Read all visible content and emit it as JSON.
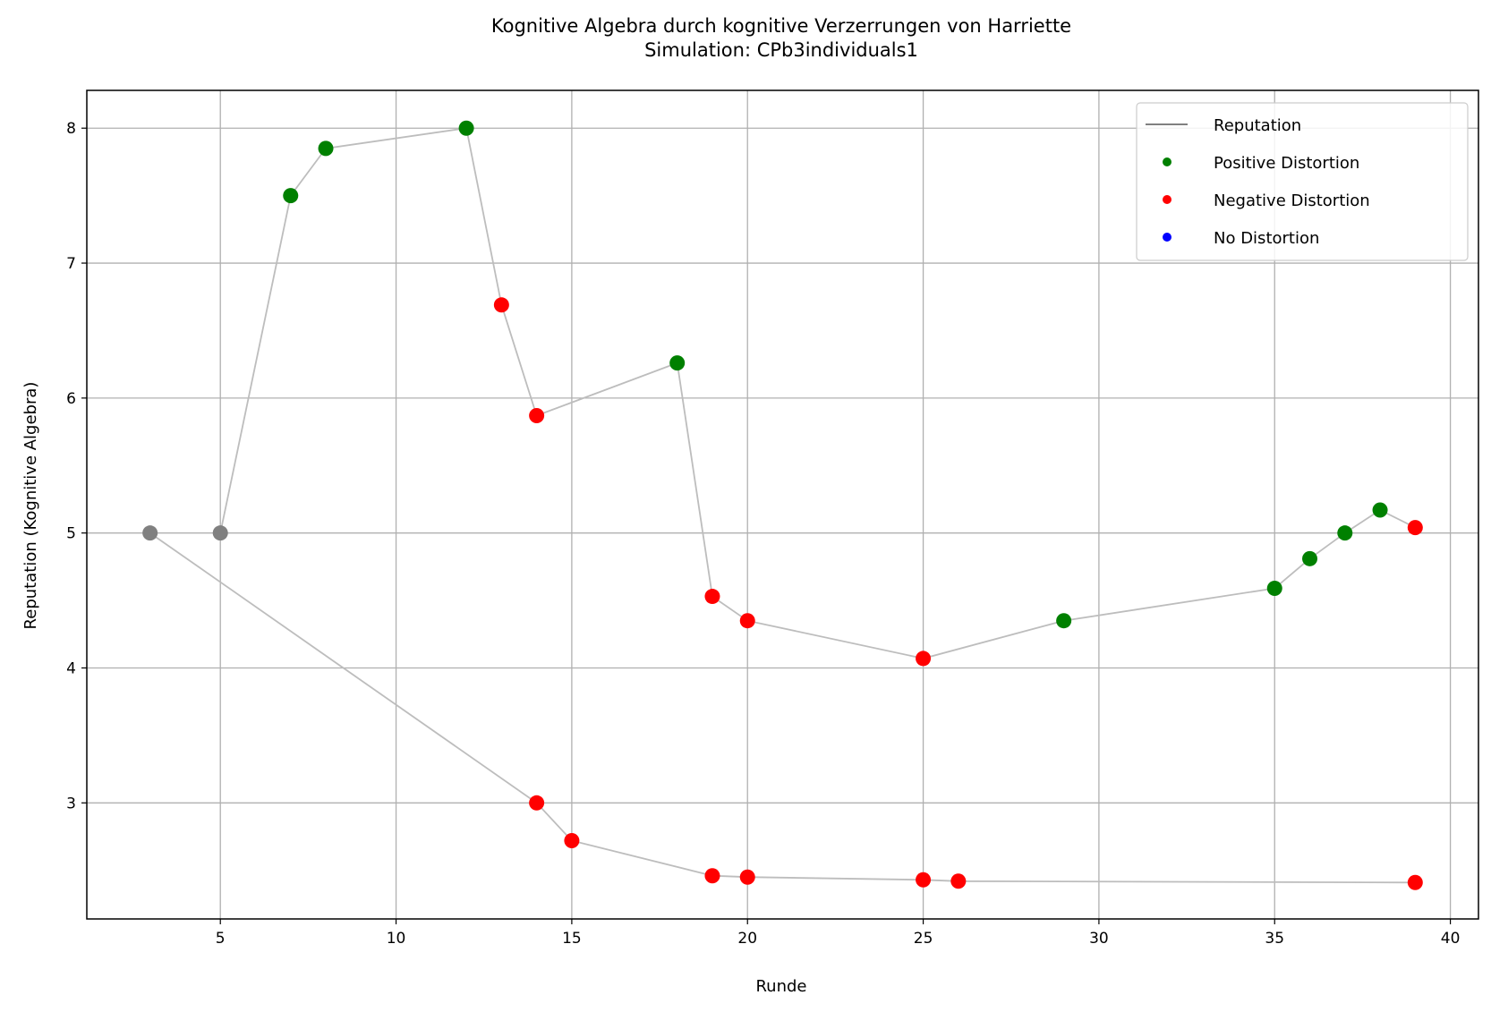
{
  "chart_data": {
    "type": "line",
    "title": "Kognitive Algebra durch kognitive Verzerrungen von Harriette",
    "subtitle": "Simulation: CPb3individuals1",
    "xlabel": "Runde",
    "ylabel": "Reputation (Kognitive Algebra)",
    "xlim": [
      1.2,
      40.8
    ],
    "ylim": [
      2.14,
      8.28
    ],
    "xticks": [
      5,
      10,
      15,
      20,
      25,
      30,
      35,
      40
    ],
    "yticks": [
      3,
      4,
      5,
      6,
      7,
      8
    ],
    "grid": true,
    "legend_position": "top-right",
    "colors": {
      "line": "#bdbdbd",
      "legend_line": "#808080",
      "positive": "#008000",
      "negative": "#ff0000",
      "none": "#0000ff",
      "initial": "#808080"
    },
    "legend": [
      {
        "label": "Reputation",
        "kind": "line",
        "color": "#808080"
      },
      {
        "label": "Positive Distortion",
        "kind": "marker",
        "color": "#008000"
      },
      {
        "label": "Negative Distortion",
        "kind": "marker",
        "color": "#ff0000"
      },
      {
        "label": "No Distortion",
        "kind": "marker",
        "color": "#0000ff"
      }
    ],
    "series": [
      {
        "points": [
          {
            "x": 5,
            "y": 5.0,
            "d": "initial"
          },
          {
            "x": 7,
            "y": 7.5,
            "d": "positive"
          },
          {
            "x": 8,
            "y": 7.85,
            "d": "positive"
          },
          {
            "x": 12,
            "y": 8.0,
            "d": "positive"
          },
          {
            "x": 13,
            "y": 6.69,
            "d": "negative"
          },
          {
            "x": 14,
            "y": 5.87,
            "d": "negative"
          },
          {
            "x": 18,
            "y": 6.26,
            "d": "positive"
          },
          {
            "x": 19,
            "y": 4.53,
            "d": "negative"
          },
          {
            "x": 20,
            "y": 4.35,
            "d": "negative"
          },
          {
            "x": 25,
            "y": 4.07,
            "d": "negative"
          },
          {
            "x": 29,
            "y": 4.35,
            "d": "positive"
          },
          {
            "x": 35,
            "y": 4.59,
            "d": "positive"
          },
          {
            "x": 36,
            "y": 4.81,
            "d": "positive"
          },
          {
            "x": 37,
            "y": 5.0,
            "d": "positive"
          },
          {
            "x": 38,
            "y": 5.17,
            "d": "positive"
          },
          {
            "x": 39,
            "y": 5.04,
            "d": "negative"
          }
        ]
      },
      {
        "points": [
          {
            "x": 3,
            "y": 5.0,
            "d": "initial"
          },
          {
            "x": 14,
            "y": 3.0,
            "d": "negative"
          },
          {
            "x": 15,
            "y": 2.72,
            "d": "negative"
          },
          {
            "x": 19,
            "y": 2.46,
            "d": "negative"
          },
          {
            "x": 20,
            "y": 2.45,
            "d": "negative"
          },
          {
            "x": 25,
            "y": 2.43,
            "d": "negative"
          },
          {
            "x": 26,
            "y": 2.42,
            "d": "negative"
          },
          {
            "x": 39,
            "y": 2.41,
            "d": "negative"
          }
        ]
      }
    ]
  }
}
